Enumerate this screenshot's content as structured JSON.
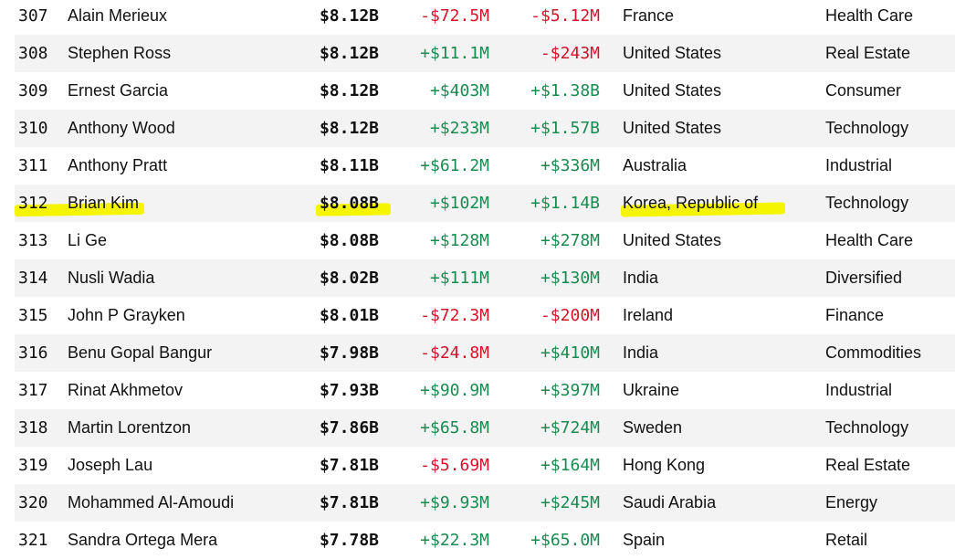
{
  "rows": [
    {
      "rank": "307",
      "name": "Alain Merieux",
      "worth": "$8.12B",
      "last_change": "-$72.5M",
      "ytd_change": "-$5.12M",
      "country": "France",
      "industry": "Health Care"
    },
    {
      "rank": "308",
      "name": "Stephen Ross",
      "worth": "$8.12B",
      "last_change": "+$11.1M",
      "ytd_change": "-$243M",
      "country": "United States",
      "industry": "Real Estate"
    },
    {
      "rank": "309",
      "name": "Ernest Garcia",
      "worth": "$8.12B",
      "last_change": "+$403M",
      "ytd_change": "+$1.38B",
      "country": "United States",
      "industry": "Consumer"
    },
    {
      "rank": "310",
      "name": "Anthony Wood",
      "worth": "$8.12B",
      "last_change": "+$233M",
      "ytd_change": "+$1.57B",
      "country": "United States",
      "industry": "Technology"
    },
    {
      "rank": "311",
      "name": "Anthony Pratt",
      "worth": "$8.11B",
      "last_change": "+$61.2M",
      "ytd_change": "+$336M",
      "country": "Australia",
      "industry": "Industrial"
    },
    {
      "rank": "312",
      "name": "Brian Kim",
      "worth": "$8.08B",
      "last_change": "+$102M",
      "ytd_change": "+$1.14B",
      "country": "Korea, Republic of",
      "industry": "Technology"
    },
    {
      "rank": "313",
      "name": "Li Ge",
      "worth": "$8.08B",
      "last_change": "+$128M",
      "ytd_change": "+$278M",
      "country": "United States",
      "industry": "Health Care"
    },
    {
      "rank": "314",
      "name": "Nusli Wadia",
      "worth": "$8.02B",
      "last_change": "+$111M",
      "ytd_change": "+$130M",
      "country": "India",
      "industry": "Diversified"
    },
    {
      "rank": "315",
      "name": "John P Grayken",
      "worth": "$8.01B",
      "last_change": "-$72.3M",
      "ytd_change": "-$200M",
      "country": "Ireland",
      "industry": "Finance"
    },
    {
      "rank": "316",
      "name": "Benu Gopal Bangur",
      "worth": "$7.98B",
      "last_change": "-$24.8M",
      "ytd_change": "+$410M",
      "country": "India",
      "industry": "Commodities"
    },
    {
      "rank": "317",
      "name": "Rinat Akhmetov",
      "worth": "$7.93B",
      "last_change": "+$90.9M",
      "ytd_change": "+$397M",
      "country": "Ukraine",
      "industry": "Industrial"
    },
    {
      "rank": "318",
      "name": "Martin Lorentzon",
      "worth": "$7.86B",
      "last_change": "+$65.8M",
      "ytd_change": "+$724M",
      "country": "Sweden",
      "industry": "Technology"
    },
    {
      "rank": "319",
      "name": "Joseph Lau",
      "worth": "$7.81B",
      "last_change": "-$5.69M",
      "ytd_change": "+$164M",
      "country": "Hong Kong",
      "industry": "Real Estate"
    },
    {
      "rank": "320",
      "name": "Mohammed Al-Amoudi",
      "worth": "$7.81B",
      "last_change": "+$9.93M",
      "ytd_change": "+$245M",
      "country": "Saudi Arabia",
      "industry": "Energy"
    },
    {
      "rank": "321",
      "name": "Sandra Ortega Mera",
      "worth": "$7.78B",
      "last_change": "+$22.3M",
      "ytd_change": "+$65.0M",
      "country": "Spain",
      "industry": "Retail"
    }
  ],
  "highlighted_rank": "312",
  "colors": {
    "positive": "#1a8a50",
    "negative": "#d4122a",
    "highlight": "#f5f500",
    "alt_row": "#f3f3f3"
  }
}
